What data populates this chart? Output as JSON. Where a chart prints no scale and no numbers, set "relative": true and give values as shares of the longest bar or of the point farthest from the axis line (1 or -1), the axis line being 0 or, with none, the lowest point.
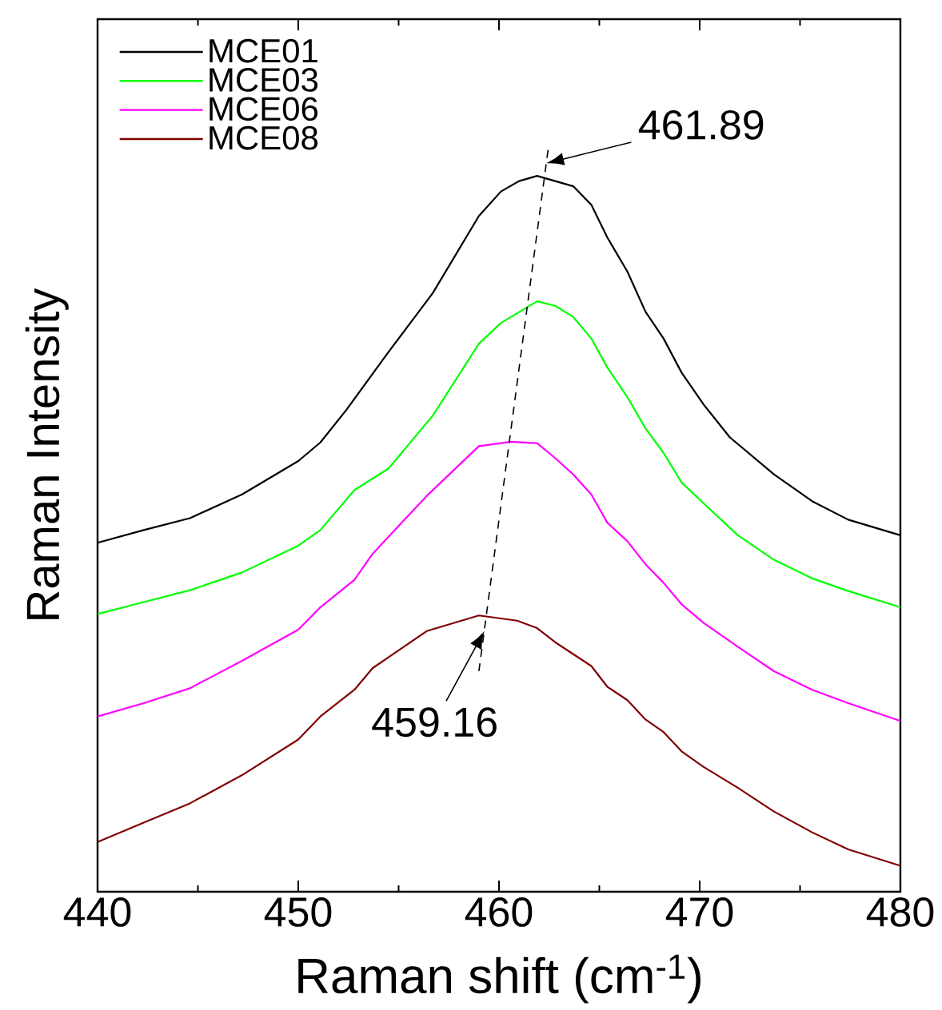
{
  "chart_data": {
    "type": "line",
    "relative": true,
    "xlabel": "Raman shift (cm$^{-1}$)",
    "ylabel": "Raman Intensity",
    "xlim": [
      440,
      480
    ],
    "xticks": [
      440,
      450,
      460,
      470,
      480
    ],
    "legend": "top left",
    "annotations": [
      {
        "text": "461.89",
        "x": 462.36,
        "y": 0.981
      },
      {
        "text": "459.16",
        "x": 459.27,
        "y": 0.351
      }
    ],
    "series": [
      {
        "name": "MCE01",
        "color": "#000000",
        "x": [
          440,
          442.3,
          444.6,
          447.2,
          450.0,
          451.1,
          452.4,
          454.5,
          456.7,
          459.0,
          460.1,
          461.0,
          461.9,
          463.7,
          464.6,
          465.4,
          466.4,
          467.3,
          468.2,
          469.1,
          470.2,
          471.5,
          473.7,
          475.6,
          477.4,
          480
        ],
        "values": [
          0.47,
          0.487,
          0.503,
          0.535,
          0.58,
          0.605,
          0.649,
          0.727,
          0.806,
          0.91,
          0.943,
          0.957,
          0.964,
          0.95,
          0.925,
          0.881,
          0.835,
          0.781,
          0.745,
          0.699,
          0.656,
          0.612,
          0.562,
          0.526,
          0.501,
          0.48
        ]
      },
      {
        "name": "MCE03",
        "color": "#00ff00",
        "x": [
          440,
          442.3,
          444.6,
          447.2,
          450.0,
          451.1,
          452.8,
          454.5,
          456.7,
          459.0,
          460.1,
          461.9,
          462.8,
          463.7,
          464.6,
          465.4,
          466.4,
          467.3,
          468.2,
          469.1,
          470.2,
          471.9,
          473.7,
          475.6,
          477.4,
          480
        ],
        "values": [
          0.374,
          0.39,
          0.406,
          0.43,
          0.466,
          0.487,
          0.541,
          0.57,
          0.641,
          0.738,
          0.766,
          0.795,
          0.789,
          0.774,
          0.745,
          0.706,
          0.666,
          0.624,
          0.591,
          0.551,
          0.523,
          0.48,
          0.447,
          0.422,
          0.405,
          0.383
        ]
      },
      {
        "name": "MCE06",
        "color": "#ff00ff",
        "x": [
          440,
          442.3,
          444.6,
          447.2,
          450.0,
          451.1,
          452.8,
          453.7,
          456.4,
          459.0,
          460.6,
          461.9,
          462.8,
          463.7,
          464.6,
          465.4,
          466.4,
          467.3,
          468.2,
          469.1,
          470.2,
          471.9,
          473.7,
          475.6,
          477.4,
          480
        ],
        "values": [
          0.236,
          0.254,
          0.274,
          0.311,
          0.353,
          0.383,
          0.42,
          0.455,
          0.533,
          0.6,
          0.606,
          0.604,
          0.584,
          0.562,
          0.535,
          0.497,
          0.472,
          0.441,
          0.416,
          0.387,
          0.362,
          0.33,
          0.297,
          0.272,
          0.254,
          0.23
        ]
      },
      {
        "name": "MCE08",
        "color": "#800000",
        "x": [
          440,
          442.3,
          444.6,
          447.2,
          450.0,
          451.1,
          452.8,
          453.7,
          456.4,
          459.0,
          460.9,
          461.9,
          462.8,
          464.6,
          465.4,
          466.4,
          467.3,
          468.2,
          469.1,
          470.2,
          471.9,
          473.7,
          475.6,
          477.4,
          480
        ],
        "values": [
          0.067,
          0.093,
          0.119,
          0.157,
          0.205,
          0.236,
          0.272,
          0.301,
          0.351,
          0.372,
          0.365,
          0.355,
          0.336,
          0.304,
          0.276,
          0.258,
          0.232,
          0.215,
          0.189,
          0.168,
          0.14,
          0.108,
          0.08,
          0.057,
          0.035
        ]
      },
      {
        "type": "line",
        "line_style": "dashed",
        "color": "#000000",
        "x": [
          459.0,
          462.45
        ],
        "values": [
          0.297,
          1.0
        ]
      }
    ]
  }
}
